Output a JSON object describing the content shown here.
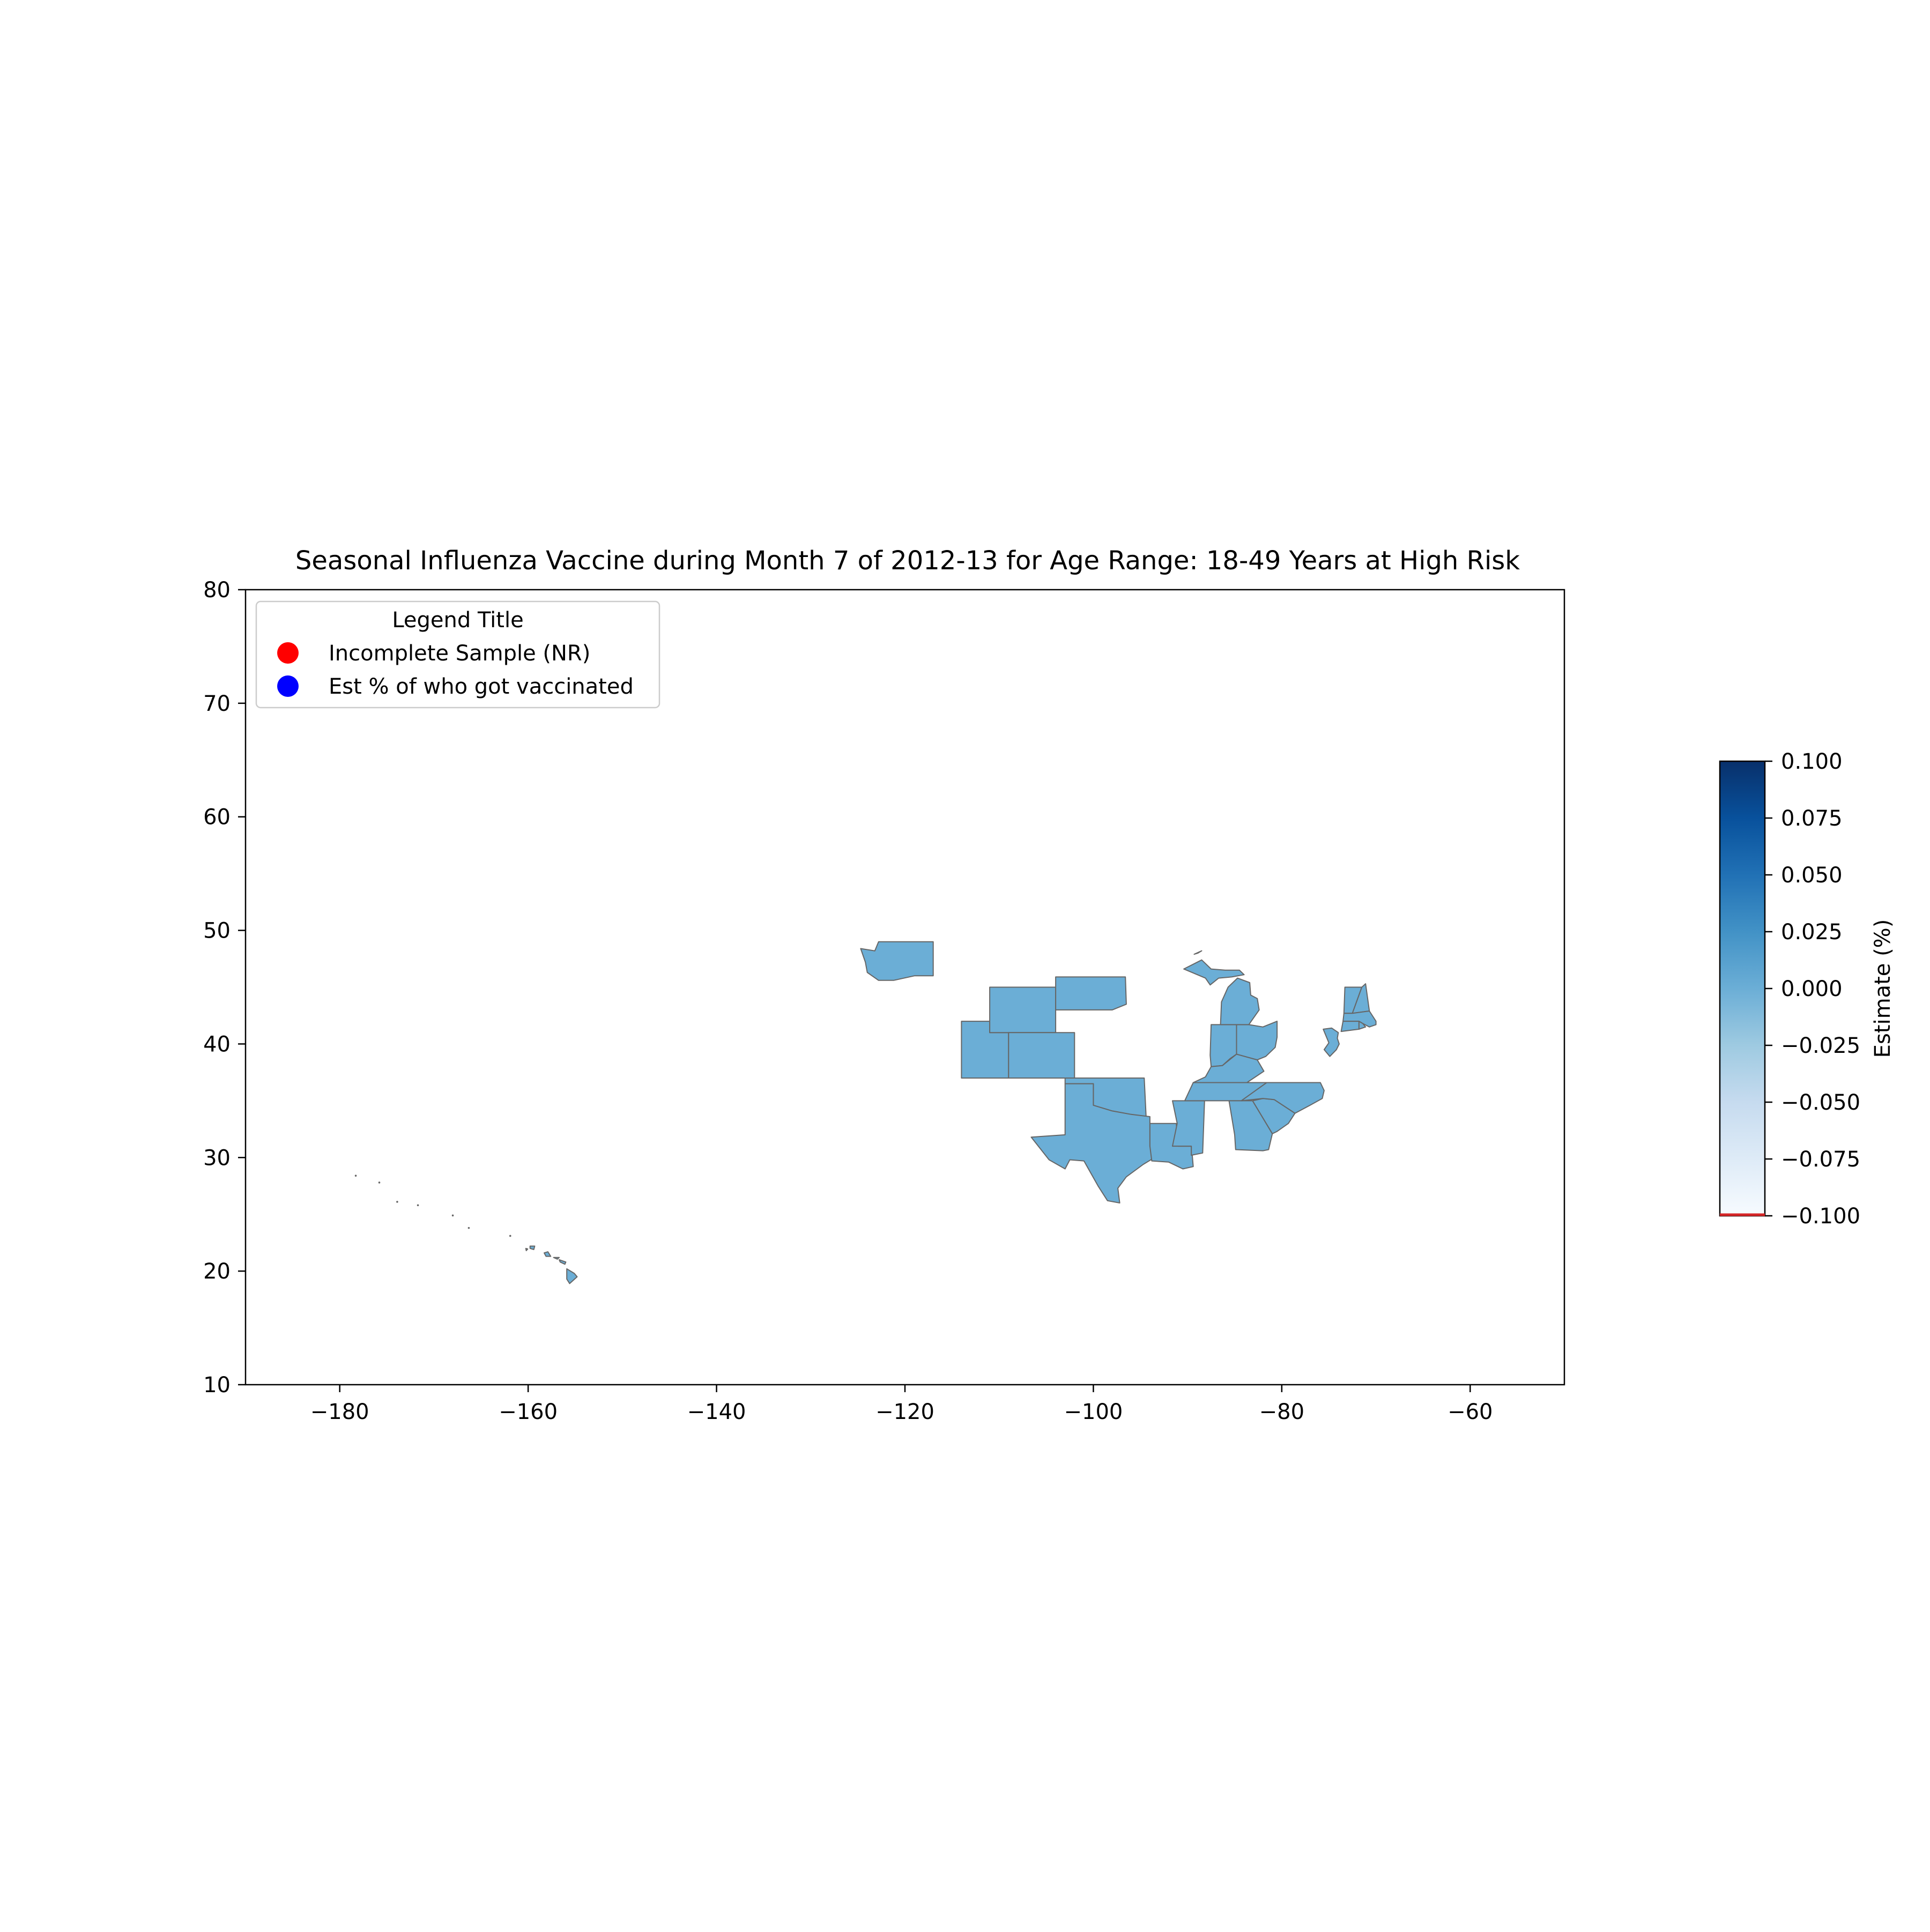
{
  "title": "Seasonal Influenza Vaccine during Month 7 of 2012-13 for Age Range: 18-49 Years at High Risk",
  "map": {
    "x_ticks": [
      -180,
      -160,
      -140,
      -120,
      -100,
      -80,
      -60
    ],
    "y_ticks": [
      10,
      20,
      30,
      40,
      50,
      60,
      70,
      80
    ],
    "x_tick_labels": [
      "−180",
      "−160",
      "−140",
      "−120",
      "−100",
      "−80",
      "−60"
    ],
    "y_tick_labels": [
      "10",
      "20",
      "30",
      "40",
      "50",
      "60",
      "70",
      "80"
    ],
    "xlim": [
      -190,
      -50
    ],
    "ylim": [
      10,
      80
    ],
    "fill_color": "#6baed6",
    "edge_color": "#666666"
  },
  "legend": {
    "title": "Legend Title",
    "items": [
      {
        "label": "Incomplete Sample (NR)",
        "color": "#ff0000"
      },
      {
        "label": "Est % of who got vaccinated",
        "color": "#0000ff"
      }
    ]
  },
  "colorbar": {
    "label": "Estimate (%)",
    "range": [
      -0.1,
      0.1
    ],
    "ticks": [
      0.1,
      0.075,
      0.05,
      0.025,
      0.0,
      -0.025,
      -0.05,
      -0.075,
      -0.1
    ],
    "tick_labels": [
      "0.100",
      "0.075",
      "0.050",
      "0.025",
      "0.000",
      "−0.025",
      "−0.050",
      "−0.075",
      "−0.100"
    ],
    "color_low": "#f7fbff",
    "color_high": "#08306b",
    "marker_color": "#d62728"
  },
  "states": [
    {
      "name": "Washington",
      "coords": [
        [
          -124.7,
          48.4
        ],
        [
          -123.2,
          48.2
        ],
        [
          -122.8,
          49.0
        ],
        [
          -117.0,
          49.0
        ],
        [
          -117.0,
          46.0
        ],
        [
          -119.0,
          46.0
        ],
        [
          -121.2,
          45.6
        ],
        [
          -122.8,
          45.6
        ],
        [
          -124.0,
          46.3
        ],
        [
          -124.2,
          47.2
        ],
        [
          -124.7,
          48.4
        ]
      ]
    },
    {
      "name": "Utah",
      "coords": [
        [
          -114.0,
          42.0
        ],
        [
          -111.0,
          42.0
        ],
        [
          -111.0,
          41.0
        ],
        [
          -109.0,
          41.0
        ],
        [
          -109.0,
          37.0
        ],
        [
          -114.0,
          37.0
        ],
        [
          -114.0,
          42.0
        ]
      ]
    },
    {
      "name": "Wyoming",
      "coords": [
        [
          -111.0,
          45.0
        ],
        [
          -104.0,
          45.0
        ],
        [
          -104.0,
          41.0
        ],
        [
          -111.0,
          41.0
        ],
        [
          -111.0,
          45.0
        ]
      ]
    },
    {
      "name": "Colorado",
      "coords": [
        [
          -109.0,
          41.0
        ],
        [
          -102.0,
          41.0
        ],
        [
          -102.0,
          37.0
        ],
        [
          -109.0,
          37.0
        ],
        [
          -109.0,
          41.0
        ]
      ]
    },
    {
      "name": "South Dakota",
      "coords": [
        [
          -104.0,
          45.9
        ],
        [
          -96.6,
          45.9
        ],
        [
          -96.5,
          43.5
        ],
        [
          -98.0,
          43.0
        ],
        [
          -104.0,
          43.0
        ],
        [
          -104.0,
          45.9
        ]
      ]
    },
    {
      "name": "Oklahoma",
      "coords": [
        [
          -103.0,
          37.0
        ],
        [
          -94.6,
          37.0
        ],
        [
          -94.4,
          33.6
        ],
        [
          -96.0,
          33.8
        ],
        [
          -98.0,
          34.1
        ],
        [
          -100.0,
          34.6
        ],
        [
          -100.0,
          36.5
        ],
        [
          -103.0,
          36.5
        ],
        [
          -103.0,
          37.0
        ]
      ]
    },
    {
      "name": "Texas",
      "coords": [
        [
          -103.0,
          36.5
        ],
        [
          -100.0,
          36.5
        ],
        [
          -100.0,
          34.6
        ],
        [
          -98.0,
          34.1
        ],
        [
          -96.0,
          33.8
        ],
        [
          -94.0,
          33.6
        ],
        [
          -94.0,
          31.0
        ],
        [
          -93.5,
          30.0
        ],
        [
          -94.7,
          29.4
        ],
        [
          -96.5,
          28.3
        ],
        [
          -97.4,
          27.3
        ],
        [
          -97.2,
          26.0
        ],
        [
          -98.5,
          26.2
        ],
        [
          -99.5,
          27.5
        ],
        [
          -101.0,
          29.7
        ],
        [
          -102.5,
          29.8
        ],
        [
          -103.0,
          29.0
        ],
        [
          -104.7,
          29.8
        ],
        [
          -106.6,
          31.8
        ],
        [
          -103.0,
          32.0
        ],
        [
          -103.0,
          36.5
        ]
      ]
    },
    {
      "name": "Louisiana",
      "coords": [
        [
          -94.0,
          33.0
        ],
        [
          -91.2,
          33.0
        ],
        [
          -91.0,
          31.0
        ],
        [
          -89.6,
          31.0
        ],
        [
          -89.5,
          30.2
        ],
        [
          -89.4,
          29.2
        ],
        [
          -90.5,
          29.0
        ],
        [
          -92.0,
          29.6
        ],
        [
          -93.8,
          29.7
        ],
        [
          -94.0,
          31.0
        ],
        [
          -94.0,
          33.0
        ]
      ]
    },
    {
      "name": "Mississippi",
      "coords": [
        [
          -91.6,
          35.0
        ],
        [
          -88.2,
          35.0
        ],
        [
          -88.4,
          30.4
        ],
        [
          -89.6,
          30.2
        ],
        [
          -89.6,
          31.0
        ],
        [
          -91.6,
          31.0
        ],
        [
          -91.1,
          33.0
        ],
        [
          -91.6,
          35.0
        ]
      ]
    },
    {
      "name": "Indiana",
      "coords": [
        [
          -87.5,
          41.7
        ],
        [
          -84.8,
          41.7
        ],
        [
          -84.8,
          39.1
        ],
        [
          -85.5,
          38.7
        ],
        [
          -86.3,
          38.1
        ],
        [
          -87.5,
          38.0
        ],
        [
          -87.6,
          39.0
        ],
        [
          -87.5,
          41.7
        ]
      ]
    },
    {
      "name": "Ohio",
      "coords": [
        [
          -84.8,
          41.7
        ],
        [
          -83.5,
          41.7
        ],
        [
          -82.0,
          41.5
        ],
        [
          -80.5,
          42.0
        ],
        [
          -80.5,
          40.6
        ],
        [
          -80.7,
          39.7
        ],
        [
          -81.7,
          38.9
        ],
        [
          -82.6,
          38.6
        ],
        [
          -83.7,
          38.7
        ],
        [
          -84.8,
          39.1
        ],
        [
          -84.8,
          41.7
        ]
      ]
    },
    {
      "name": "Kentucky",
      "coords": [
        [
          -89.4,
          36.6
        ],
        [
          -88.1,
          37.1
        ],
        [
          -87.5,
          38.0
        ],
        [
          -86.3,
          38.1
        ],
        [
          -84.8,
          39.1
        ],
        [
          -82.6,
          38.6
        ],
        [
          -81.9,
          37.6
        ],
        [
          -83.7,
          36.6
        ],
        [
          -89.4,
          36.6
        ]
      ]
    },
    {
      "name": "Tennessee",
      "coords": [
        [
          -90.3,
          35.0
        ],
        [
          -88.2,
          35.0
        ],
        [
          -84.3,
          35.0
        ],
        [
          -82.0,
          35.2
        ],
        [
          -81.6,
          36.6
        ],
        [
          -83.7,
          36.6
        ],
        [
          -89.4,
          36.6
        ],
        [
          -90.3,
          35.0
        ]
      ]
    },
    {
      "name": "Georgia",
      "coords": [
        [
          -85.6,
          35.0
        ],
        [
          -83.1,
          35.0
        ],
        [
          -81.0,
          32.1
        ],
        [
          -81.4,
          30.7
        ],
        [
          -82.0,
          30.6
        ],
        [
          -84.9,
          30.7
        ],
        [
          -85.0,
          32.0
        ],
        [
          -85.6,
          35.0
        ]
      ]
    },
    {
      "name": "South Carolina",
      "coords": [
        [
          -83.1,
          35.0
        ],
        [
          -82.0,
          35.2
        ],
        [
          -80.8,
          35.1
        ],
        [
          -78.6,
          33.9
        ],
        [
          -79.3,
          33.0
        ],
        [
          -80.5,
          32.3
        ],
        [
          -81.0,
          32.1
        ],
        [
          -83.1,
          35.0
        ]
      ]
    },
    {
      "name": "North Carolina",
      "coords": [
        [
          -84.3,
          35.0
        ],
        [
          -82.0,
          35.2
        ],
        [
          -80.8,
          35.1
        ],
        [
          -78.6,
          33.9
        ],
        [
          -77.0,
          34.6
        ],
        [
          -75.7,
          35.2
        ],
        [
          -75.5,
          35.9
        ],
        [
          -75.9,
          36.6
        ],
        [
          -81.6,
          36.6
        ],
        [
          -84.3,
          35.0
        ]
      ]
    },
    {
      "name": "Michigan Lower",
      "coords": [
        [
          -86.5,
          41.7
        ],
        [
          -84.8,
          41.7
        ],
        [
          -83.5,
          41.7
        ],
        [
          -82.4,
          43.0
        ],
        [
          -82.6,
          44.0
        ],
        [
          -83.3,
          44.3
        ],
        [
          -83.4,
          45.4
        ],
        [
          -84.7,
          45.8
        ],
        [
          -85.7,
          45.0
        ],
        [
          -86.4,
          43.7
        ],
        [
          -86.5,
          41.7
        ]
      ]
    },
    {
      "name": "Michigan Upper",
      "coords": [
        [
          -90.4,
          46.6
        ],
        [
          -88.5,
          47.4
        ],
        [
          -87.5,
          46.6
        ],
        [
          -86.0,
          46.5
        ],
        [
          -84.5,
          46.5
        ],
        [
          -84.0,
          46.1
        ],
        [
          -85.3,
          45.9
        ],
        [
          -86.7,
          45.8
        ],
        [
          -87.6,
          45.2
        ],
        [
          -88.1,
          45.8
        ],
        [
          -90.4,
          46.6
        ]
      ]
    },
    {
      "name": "Michigan Isle Royale",
      "coords": [
        [
          -89.3,
          47.9
        ],
        [
          -88.5,
          48.2
        ],
        [
          -88.9,
          48.0
        ],
        [
          -89.3,
          47.9
        ]
      ]
    },
    {
      "name": "New Jersey",
      "coords": [
        [
          -75.6,
          41.3
        ],
        [
          -74.7,
          41.4
        ],
        [
          -74.0,
          41.0
        ],
        [
          -74.1,
          40.5
        ],
        [
          -73.9,
          40.0
        ],
        [
          -74.2,
          39.5
        ],
        [
          -74.9,
          38.9
        ],
        [
          -75.5,
          39.5
        ],
        [
          -75.0,
          40.1
        ],
        [
          -75.6,
          41.3
        ]
      ]
    },
    {
      "name": "Vermont",
      "coords": [
        [
          -73.4,
          42.7
        ],
        [
          -72.5,
          42.7
        ],
        [
          -71.5,
          45.0
        ],
        [
          -72.0,
          45.0
        ],
        [
          -73.3,
          45.0
        ],
        [
          -73.4,
          42.7
        ]
      ]
    },
    {
      "name": "New Hampshire",
      "coords": [
        [
          -72.5,
          42.7
        ],
        [
          -70.7,
          42.9
        ],
        [
          -71.1,
          45.3
        ],
        [
          -71.5,
          45.0
        ],
        [
          -72.5,
          42.7
        ]
      ]
    },
    {
      "name": "Massachusetts",
      "coords": [
        [
          -73.5,
          42.0
        ],
        [
          -71.8,
          42.0
        ],
        [
          -71.4,
          41.8
        ],
        [
          -70.7,
          41.5
        ],
        [
          -70.0,
          41.7
        ],
        [
          -70.0,
          42.0
        ],
        [
          -70.7,
          42.9
        ],
        [
          -72.5,
          42.7
        ],
        [
          -73.4,
          42.7
        ],
        [
          -73.5,
          42.0
        ]
      ]
    },
    {
      "name": "Connecticut",
      "coords": [
        [
          -73.7,
          41.1
        ],
        [
          -71.8,
          41.3
        ],
        [
          -71.8,
          42.0
        ],
        [
          -73.5,
          42.0
        ],
        [
          -73.7,
          41.1
        ]
      ]
    },
    {
      "name": "Rhode Island",
      "coords": [
        [
          -71.8,
          41.3
        ],
        [
          -71.1,
          41.5
        ],
        [
          -71.4,
          41.8
        ],
        [
          -71.8,
          42.0
        ],
        [
          -71.8,
          41.3
        ]
      ]
    },
    {
      "name": "Hawaii Big Island",
      "coords": [
        [
          -155.9,
          20.2
        ],
        [
          -155.1,
          19.8
        ],
        [
          -154.8,
          19.5
        ],
        [
          -155.6,
          18.9
        ],
        [
          -155.9,
          19.3
        ],
        [
          -155.9,
          20.2
        ]
      ]
    },
    {
      "name": "Hawaii Maui",
      "coords": [
        [
          -156.7,
          21.0
        ],
        [
          -156.0,
          20.8
        ],
        [
          -156.1,
          20.6
        ],
        [
          -156.6,
          20.8
        ],
        [
          -156.7,
          21.0
        ]
      ]
    },
    {
      "name": "Hawaii Molokai",
      "coords": [
        [
          -157.3,
          21.2
        ],
        [
          -156.7,
          21.2
        ],
        [
          -156.9,
          21.05
        ],
        [
          -157.3,
          21.2
        ]
      ]
    },
    {
      "name": "Hawaii Oahu",
      "coords": [
        [
          -158.3,
          21.6
        ],
        [
          -157.9,
          21.7
        ],
        [
          -157.6,
          21.3
        ],
        [
          -158.1,
          21.3
        ],
        [
          -158.3,
          21.6
        ]
      ]
    },
    {
      "name": "Hawaii Kauai",
      "coords": [
        [
          -159.8,
          22.2
        ],
        [
          -159.3,
          22.2
        ],
        [
          -159.4,
          21.9
        ],
        [
          -159.8,
          22.0
        ],
        [
          -159.8,
          22.2
        ]
      ]
    },
    {
      "name": "Hawaii Niihau",
      "coords": [
        [
          -160.25,
          22.0
        ],
        [
          -160.05,
          21.95
        ],
        [
          -160.2,
          21.8
        ],
        [
          -160.25,
          22.0
        ]
      ]
    }
  ],
  "islets": [
    [
      -178.3,
      28.4
    ],
    [
      -175.8,
      27.8
    ],
    [
      -173.9,
      26.1
    ],
    [
      -171.7,
      25.8
    ],
    [
      -168.0,
      24.9
    ],
    [
      -166.3,
      23.8
    ],
    [
      -161.9,
      23.1
    ]
  ]
}
